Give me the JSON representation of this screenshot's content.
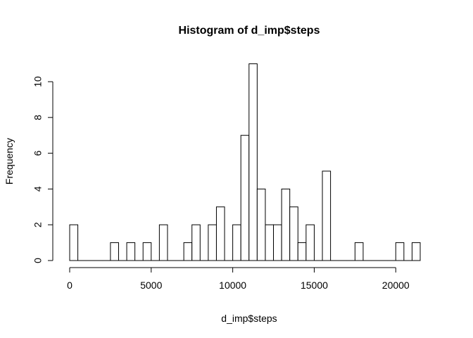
{
  "chart_data": {
    "type": "bar",
    "title": "Histogram of d_imp$steps",
    "xlabel": "d_imp$steps",
    "ylabel": "Frequency",
    "bin_width": 500,
    "x_range": [
      0,
      21500
    ],
    "xlim": [
      0,
      21500
    ],
    "ylim": [
      0,
      11
    ],
    "x_ticks": [
      0,
      5000,
      10000,
      15000,
      20000
    ],
    "x_tick_labels": [
      "0",
      "5000",
      "10000",
      "15000",
      "20000"
    ],
    "y_ticks": [
      0,
      2,
      4,
      6,
      8,
      10
    ],
    "y_tick_labels": [
      "0",
      "2",
      "4",
      "6",
      "8",
      "10"
    ],
    "values": [
      2,
      0,
      0,
      0,
      0,
      1,
      0,
      1,
      0,
      1,
      0,
      2,
      0,
      0,
      1,
      2,
      0,
      2,
      3,
      0,
      2,
      7,
      11,
      4,
      2,
      2,
      4,
      3,
      1,
      2,
      0,
      5,
      0,
      0,
      0,
      1,
      0,
      0,
      0,
      0,
      1,
      0,
      1
    ],
    "grid": false,
    "bar_fill": "#ffffff",
    "bar_stroke": "#000000"
  }
}
